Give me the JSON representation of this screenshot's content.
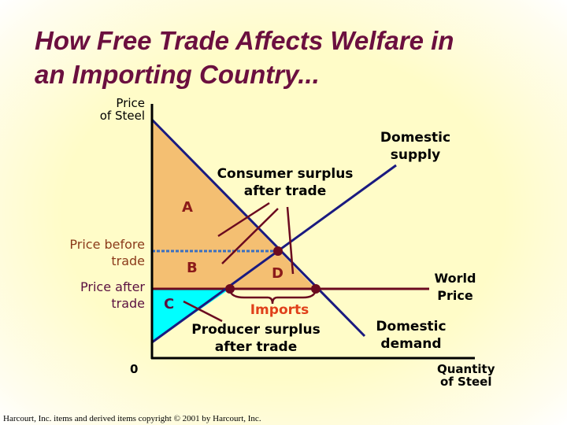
{
  "title": "How Free Trade Affects Welfare in\nan Importing Country...",
  "axes": {
    "y_label": "Price\nof Steel",
    "x_label": "Quantity\nof Steel",
    "origin": "0"
  },
  "price_labels": {
    "before": "Price before\ntrade",
    "after": "Price after\ntrade"
  },
  "curves": {
    "supply": "Domestic\nsupply",
    "demand": "Domestic\ndemand",
    "world_price": "World\nPrice"
  },
  "areas": {
    "a": "A",
    "b": "B",
    "c": "C",
    "d": "D"
  },
  "annotations": {
    "consumer_surplus": "Consumer surplus\nafter trade",
    "producer_surplus": "Producer surplus\nafter trade",
    "imports": "Imports"
  },
  "colors": {
    "consumer_surplus_fill": "#f4bf72",
    "producer_surplus_fill": "#00ffff",
    "curve": "#1a1a80",
    "world_price_line": "#6b0a1f",
    "title": "#6b0f3f",
    "imports_text": "#e0401a"
  },
  "copyright": "Harcourt, Inc. items and derived items copyright © 2001 by Harcourt, Inc."
}
